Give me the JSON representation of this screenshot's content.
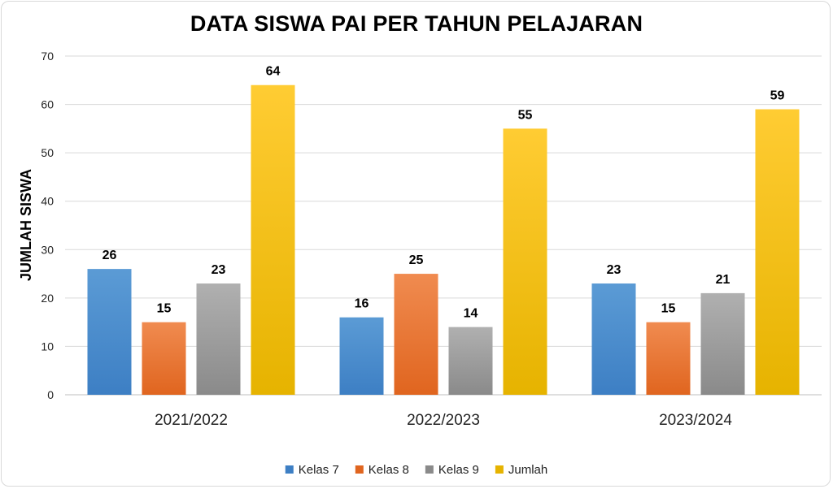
{
  "chart_data": {
    "type": "bar",
    "title": "DATA SISWA PAI PER TAHUN PELAJARAN",
    "xlabel": "",
    "ylabel": "JUMLAH SISWA",
    "ylim": [
      0,
      70
    ],
    "yticks": [
      0,
      10,
      20,
      30,
      40,
      50,
      60,
      70
    ],
    "grid": true,
    "legend": "bottom",
    "categories": [
      "2021/2022",
      "2022/2023",
      "2023/2024"
    ],
    "series": [
      {
        "name": "Kelas 7",
        "values": [
          26,
          16,
          23
        ],
        "color": "#5b9bd5",
        "color_dark": "#3d7fc4"
      },
      {
        "name": "Kelas 8",
        "values": [
          15,
          25,
          15
        ],
        "color": "#f08b50",
        "color_dark": "#e0651f"
      },
      {
        "name": "Kelas 9",
        "values": [
          23,
          14,
          21
        ],
        "color": "#b0b0b0",
        "color_dark": "#8a8a8a"
      },
      {
        "name": "Jumlah",
        "values": [
          64,
          55,
          59
        ],
        "color": "#ffcc33",
        "color_dark": "#e6b300"
      }
    ]
  }
}
